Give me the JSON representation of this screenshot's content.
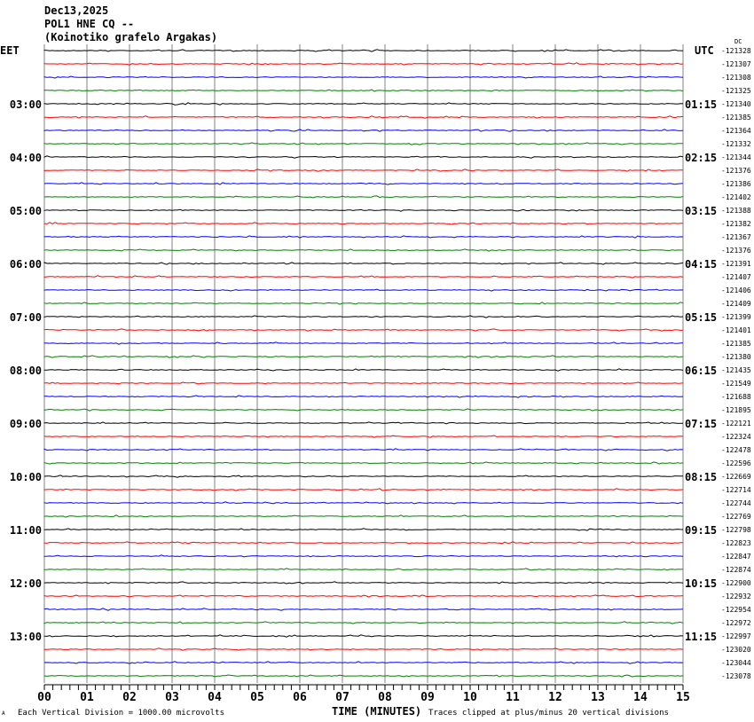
{
  "header": {
    "date": "Dec13,2025",
    "station": "POL1 HNE CQ --",
    "location": "(Koinotiko grafelo Argakas)"
  },
  "chart_data": {
    "type": "line",
    "subtype": "helicorder",
    "left_timezone": "EET",
    "right_timezone": "UTC",
    "dc_label": "DC",
    "xlabel": "TIME (MINUTES)",
    "xlim": [
      0,
      15
    ],
    "x_ticks": [
      "00",
      "01",
      "02",
      "03",
      "04",
      "05",
      "06",
      "07",
      "08",
      "09",
      "10",
      "11",
      "12",
      "13",
      "14",
      "15"
    ],
    "rows_per_hour": 4,
    "row_minutes": 15,
    "trace_colors": [
      "#000000",
      "#ff0000",
      "#0000ff",
      "#008000"
    ],
    "left_labels": [
      "",
      "03:00",
      "04:00",
      "05:00",
      "06:00",
      "07:00",
      "08:00",
      "09:00",
      "10:00",
      "11:00",
      "12:00",
      "13:00"
    ],
    "right_labels": [
      "",
      "01:15",
      "02:15",
      "03:15",
      "04:15",
      "05:15",
      "06:15",
      "07:15",
      "08:15",
      "09:15",
      "10:15",
      "11:15"
    ],
    "row_offsets": [
      -121328,
      -121307,
      -121308,
      -121325,
      -121340,
      -121385,
      -121364,
      -121332,
      -121344,
      -121376,
      -121386,
      -121402,
      -121388,
      -121382,
      -121367,
      -121376,
      -121391,
      -121407,
      -121406,
      -121409,
      -121399,
      -121401,
      -121385,
      -121380,
      -121435,
      -121549,
      -121688,
      -121895,
      -122121,
      -122324,
      -122478,
      -122596,
      -122669,
      -122714,
      -122744,
      -122769,
      -122798,
      -122823,
      -122847,
      -122874,
      -122900,
      -122932,
      -122954,
      -122972,
      -122997,
      -123020,
      -123044,
      -123078
    ],
    "grid": true
  },
  "footer": {
    "scale": "Each Vertical Division = 1000.00 microvolts",
    "clip": "Traces clipped at plus/minus 20 vertical divisions",
    "mark": "A"
  }
}
